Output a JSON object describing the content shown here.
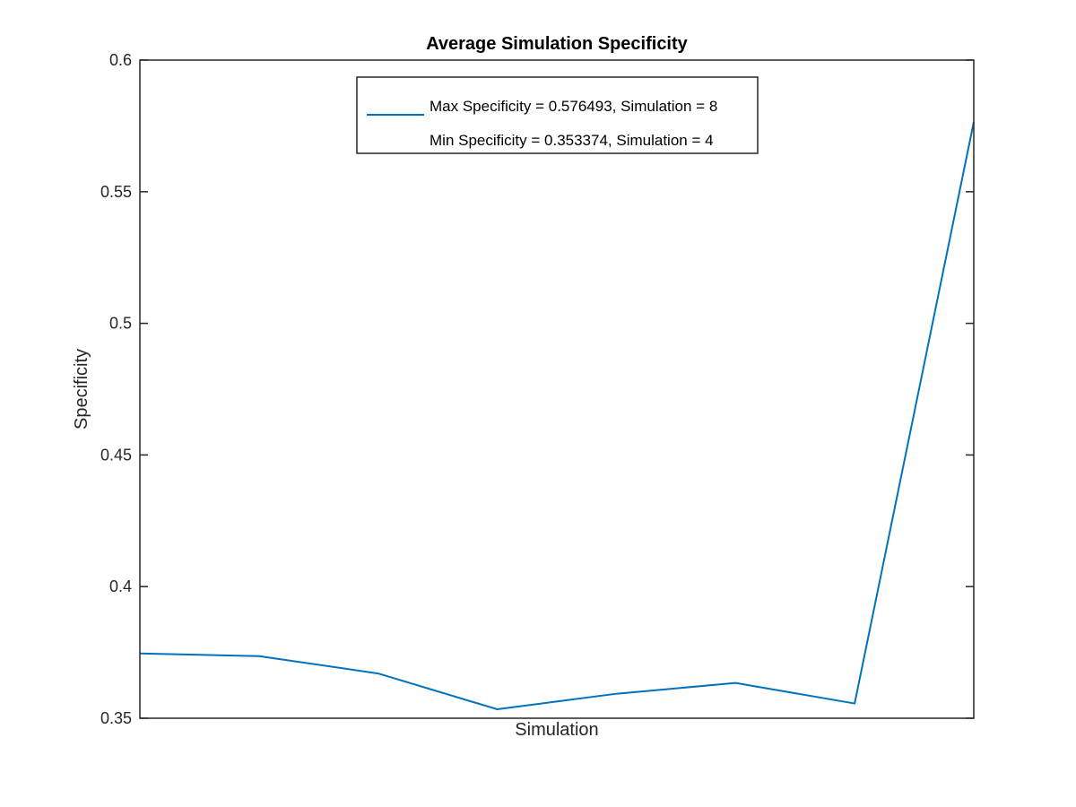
{
  "chart_data": {
    "type": "line",
    "title": "Average Simulation Specificity",
    "xlabel": "Simulation",
    "ylabel": "Specificity",
    "x": [
      1,
      2,
      3,
      4,
      5,
      6,
      7,
      8
    ],
    "series": [
      {
        "name": "Max Specificity = 0.576493, Simulation = 8",
        "values": [
          0.3746,
          0.3736,
          0.367,
          0.3534,
          0.3593,
          0.3634,
          0.3556,
          0.5765
        ],
        "color": "#0072bd"
      }
    ],
    "legend_entries": [
      "Max Specificity = 0.576493, Simulation = 8",
      "Min Specificity = 0.353374, Simulation = 4"
    ],
    "xlim": [
      1,
      8
    ],
    "ylim": [
      0.35,
      0.6
    ],
    "yticks": [
      0.35,
      0.4,
      0.45,
      0.5,
      0.55,
      0.6
    ],
    "ytick_labels": [
      "0.35",
      "0.4",
      "0.45",
      "0.5",
      "0.55",
      "0.6"
    ],
    "xticks": [],
    "grid": false,
    "legend_position": "top-center",
    "box": true
  }
}
